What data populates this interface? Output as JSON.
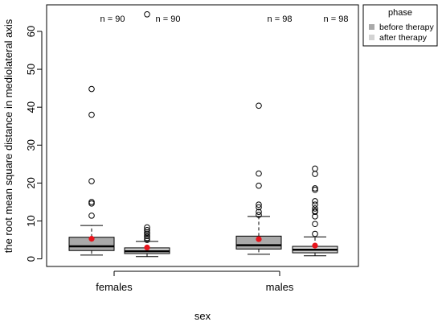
{
  "chart_data": {
    "type": "box",
    "xlabel": "sex",
    "ylabel": "the root mean square distance in mediolateral axis",
    "ylim": [
      -2,
      67
    ],
    "yticks": [
      0,
      10,
      20,
      30,
      40,
      50,
      60
    ],
    "categories": [
      "females",
      "males"
    ],
    "legend": {
      "title": "phase",
      "placement": "outside top-right",
      "entries": [
        {
          "label": "before therapy",
          "color": "#a9a9a9"
        },
        {
          "label": "after therapy",
          "color": "#d3d3d3"
        }
      ]
    },
    "boxes": [
      {
        "group": "females",
        "phase": "before therapy",
        "n_label": "n = 90",
        "whisker_low": 1.0,
        "q1": 2.2,
        "median": 3.3,
        "q3": 5.7,
        "whisker_high": 8.8,
        "mean": 5.3,
        "outliers": [
          11.4,
          14.6,
          15.0,
          20.5,
          38.0,
          44.8
        ]
      },
      {
        "group": "females",
        "phase": "after therapy",
        "n_label": "n = 90",
        "whisker_low": 0.6,
        "q1": 1.4,
        "median": 2.0,
        "q3": 2.9,
        "whisker_high": 4.6,
        "mean": 3.0,
        "outliers": [
          5.0,
          5.5,
          6.0,
          6.6,
          7.0,
          7.6,
          8.3,
          64.5
        ]
      },
      {
        "group": "males",
        "phase": "before therapy",
        "n_label": "n = 98",
        "whisker_low": 1.2,
        "q1": 2.6,
        "median": 3.6,
        "q3": 6.0,
        "whisker_high": 11.2,
        "mean": 5.2,
        "outliers": [
          11.6,
          12.4,
          13.6,
          14.3,
          19.3,
          22.5,
          40.4
        ]
      },
      {
        "group": "males",
        "phase": "after therapy",
        "n_label": "n = 98",
        "whisker_low": 0.8,
        "q1": 1.6,
        "median": 2.4,
        "q3": 3.3,
        "whisker_high": 5.8,
        "mean": 3.5,
        "outliers": [
          6.6,
          9.2,
          11.2,
          12.4,
          12.6,
          13.3,
          14.3,
          15.2,
          18.2,
          18.6,
          22.4,
          23.8
        ]
      }
    ],
    "mean_color": "#e8141c",
    "grid": false
  }
}
